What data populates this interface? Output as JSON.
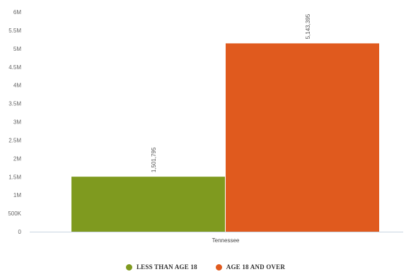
{
  "chart_data": {
    "type": "bar",
    "categories": [
      "Tennessee"
    ],
    "series": [
      {
        "name": "LESS THAN AGE 18",
        "values": [
          1501795
        ],
        "color": "#7f9a1f",
        "label": "1,501,795"
      },
      {
        "name": "AGE 18 AND OVER",
        "values": [
          5143395
        ],
        "color": "#e05a1e",
        "label": "5,143,395"
      }
    ],
    "yticks": [
      "0",
      "500K",
      "1M",
      "1.5M",
      "2M",
      "2.5M",
      "3M",
      "3.5M",
      "4M",
      "4.5M",
      "5M",
      "5.5M",
      "6M"
    ],
    "ylim": [
      0,
      6000000
    ],
    "title": "",
    "xlabel": "",
    "ylabel": "",
    "legend_position": "bottom-center",
    "grid": false
  }
}
